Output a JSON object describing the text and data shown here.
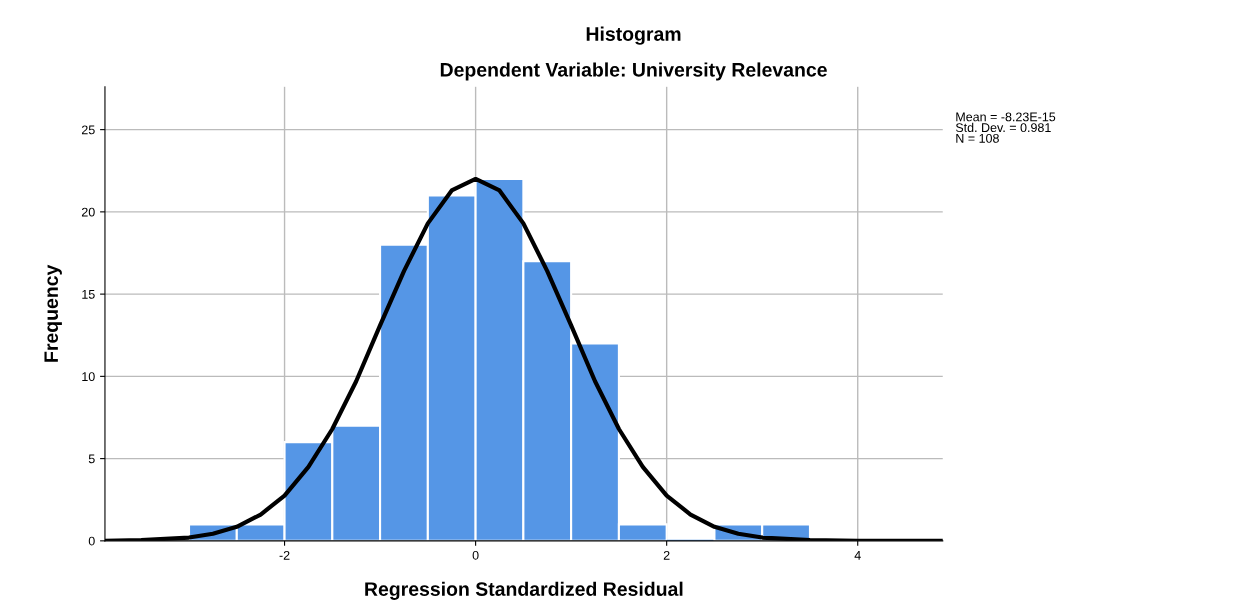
{
  "chart_data": {
    "type": "histogram",
    "title": "Histogram",
    "subtitle": "Dependent Variable: University Relevance",
    "xlabel": "Regression Standardized Residual",
    "ylabel": "Frequency",
    "bins": [
      -3,
      -2.5,
      -2,
      -1.5,
      -1,
      -0.5,
      0,
      0.5,
      1,
      1.5,
      2,
      2.5,
      3,
      3.5
    ],
    "values": [
      1,
      1,
      6,
      7,
      18,
      21,
      22,
      17,
      12,
      1,
      0,
      1,
      1
    ],
    "color": "#5596e6",
    "series": [
      {
        "type": "line",
        "color": "#000000",
        "x": [
          -3.88,
          -3.5,
          -3,
          -2.75,
          -2.5,
          -2.25,
          -2,
          -1.75,
          -1.5,
          -1.25,
          -1,
          -0.75,
          -0.5,
          -0.25,
          0,
          0.25,
          0.5,
          0.75,
          1,
          1.25,
          1.5,
          1.75,
          2,
          2.25,
          2.5,
          2.75,
          3,
          3.5,
          4,
          4.89
        ],
        "values": [
          0,
          0.04,
          0.2,
          0.43,
          0.85,
          1.6,
          2.75,
          4.5,
          6.8,
          9.7,
          13.1,
          16.4,
          19.3,
          21.3,
          22,
          21.3,
          19.3,
          16.4,
          13.1,
          9.7,
          6.8,
          4.5,
          2.75,
          1.6,
          0.85,
          0.43,
          0.2,
          0.04,
          0,
          0
        ]
      }
    ],
    "annotations": [
      "Mean = -8.23E-15\nStd. Dev. = 0.981\nN = 108"
    ],
    "xlim": [
      -3.88,
      4.89
    ],
    "xticks": [
      -2,
      0,
      2,
      4
    ],
    "ylim": [
      0,
      27.6
    ],
    "yticks": [
      0,
      5,
      10,
      15,
      20,
      25
    ],
    "grid": true
  }
}
